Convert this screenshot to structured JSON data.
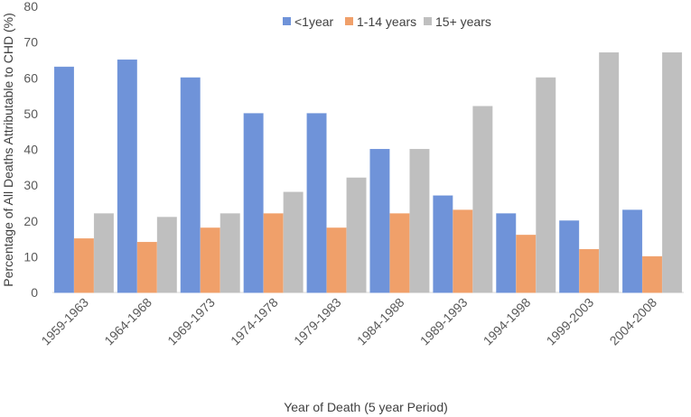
{
  "chart_data": {
    "type": "bar",
    "title": "",
    "xlabel": "Year of Death (5 year Period)",
    "ylabel": "Percentage of All Deaths Attributable to CHD (%)",
    "ylim": [
      0,
      80
    ],
    "yticks": [
      0,
      10,
      20,
      30,
      40,
      50,
      60,
      70,
      80
    ],
    "grid": false,
    "legend_position": "top-center",
    "categories": [
      "1959-1963",
      "1964-1968",
      "1969-1973",
      "1974-1978",
      "1979-1983",
      "1984-1988",
      "1989-1993",
      "1994-1998",
      "1999-2003",
      "2004-2008"
    ],
    "series": [
      {
        "name": "<1year",
        "color": "#6f93d9",
        "values": [
          63,
          65,
          60,
          50,
          50,
          40,
          27,
          22,
          20,
          23
        ]
      },
      {
        "name": "1-14 years",
        "color": "#f0a06a",
        "values": [
          15,
          14,
          18,
          22,
          18,
          22,
          23,
          16,
          12,
          10
        ]
      },
      {
        "name": "15+ years",
        "color": "#bfbfbf",
        "values": [
          22,
          21,
          22,
          28,
          32,
          40,
          52,
          60,
          67,
          67
        ]
      }
    ]
  }
}
